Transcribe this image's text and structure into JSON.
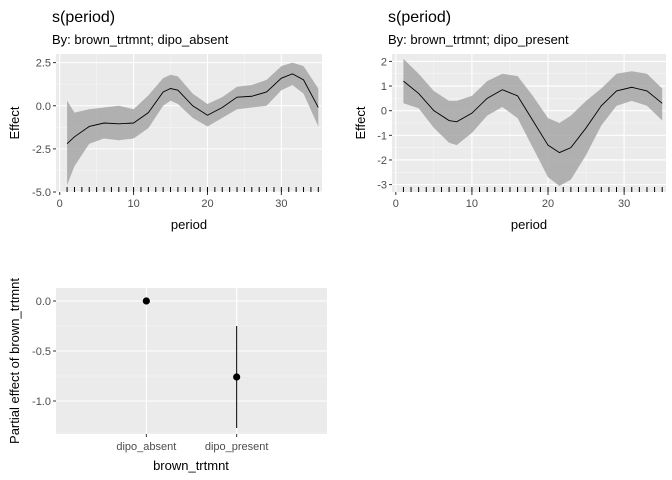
{
  "chart_data": [
    {
      "type": "area",
      "title": "s(period)",
      "subtitle": "By: brown_trtmnt; dipo_absent",
      "xlabel": "period",
      "ylabel": "Effect",
      "xlim": [
        -0.5,
        35.5
      ],
      "ylim": [
        -5.0,
        3.0
      ],
      "xticks": [
        0,
        10,
        20,
        30
      ],
      "yticks": [
        2.5,
        0.0,
        -2.5,
        -5.0
      ],
      "ytick_labels": [
        "2.5",
        "0.0",
        "-2.5",
        "-5.0"
      ],
      "grid": true,
      "rug": [
        1,
        2,
        3,
        4,
        5,
        6,
        7,
        8,
        9,
        10,
        11,
        12,
        13,
        14,
        15,
        16,
        17,
        18,
        19,
        20,
        21,
        22,
        23,
        24,
        25,
        26,
        27,
        28,
        29,
        30,
        31,
        32,
        33,
        34,
        35
      ],
      "series": [
        {
          "x": [
            1,
            2,
            4,
            6,
            8,
            10,
            12,
            14,
            15,
            16,
            18,
            20,
            22,
            24,
            26,
            28,
            30,
            31.5,
            33,
            35
          ],
          "y": [
            -2.2,
            -1.8,
            -1.2,
            -1.0,
            -1.05,
            -1.0,
            -0.4,
            0.8,
            1.0,
            0.9,
            0.0,
            -0.55,
            -0.1,
            0.5,
            0.55,
            0.8,
            1.6,
            1.85,
            1.5,
            -0.1
          ],
          "lower": [
            -4.6,
            -3.5,
            -2.2,
            -1.9,
            -2.0,
            -1.9,
            -1.3,
            0.0,
            0.3,
            0.1,
            -0.7,
            -1.2,
            -0.7,
            -0.2,
            -0.1,
            0.0,
            0.9,
            1.2,
            0.7,
            -1.2
          ],
          "upper": [
            0.3,
            -0.4,
            -0.2,
            -0.1,
            0.0,
            -0.2,
            0.6,
            1.6,
            1.8,
            1.7,
            0.7,
            0.1,
            0.5,
            1.1,
            1.2,
            1.5,
            2.3,
            2.5,
            2.3,
            1.0
          ]
        }
      ]
    },
    {
      "type": "area",
      "title": "s(period)",
      "subtitle": "By: brown_trtmnt; dipo_present",
      "xlabel": "period",
      "ylabel": "Effect",
      "xlim": [
        -0.5,
        35.5
      ],
      "ylim": [
        -3.3,
        2.3
      ],
      "xticks": [
        0,
        10,
        20,
        30
      ],
      "yticks": [
        2,
        1,
        0,
        -1,
        -2,
        -3
      ],
      "ytick_labels": [
        "2",
        "1",
        "0",
        "-1",
        "-2",
        "-3"
      ],
      "grid": true,
      "rug": [
        1,
        2,
        3,
        4,
        5,
        6,
        7,
        8,
        9,
        10,
        11,
        12,
        13,
        14,
        15,
        16,
        17,
        18,
        19,
        20,
        21,
        22,
        23,
        24,
        25,
        26,
        27,
        28,
        29,
        30,
        31,
        32,
        33,
        34,
        35
      ],
      "series": [
        {
          "x": [
            1,
            3,
            5,
            7,
            8,
            10,
            12,
            14,
            16,
            18,
            20,
            21.5,
            23,
            25,
            27,
            29,
            31,
            33,
            35
          ],
          "y": [
            1.2,
            0.7,
            0.0,
            -0.4,
            -0.45,
            -0.1,
            0.5,
            0.85,
            0.6,
            -0.4,
            -1.4,
            -1.7,
            -1.5,
            -0.7,
            0.2,
            0.8,
            0.95,
            0.8,
            0.3
          ],
          "lower": [
            0.3,
            0.1,
            -0.7,
            -1.3,
            -1.4,
            -0.9,
            -0.2,
            0.15,
            -0.3,
            -1.5,
            -2.7,
            -3.05,
            -2.8,
            -1.8,
            -0.6,
            0.2,
            0.4,
            0.2,
            -0.4
          ],
          "upper": [
            2.1,
            1.5,
            0.8,
            0.4,
            0.4,
            0.6,
            1.2,
            1.5,
            1.4,
            0.6,
            -0.3,
            -0.5,
            -0.2,
            0.4,
            0.9,
            1.5,
            1.6,
            1.5,
            0.9
          ]
        }
      ]
    },
    {
      "type": "scatter",
      "xlabel": "brown_trtmnt",
      "ylabel": "Partial effect of brown_trtmnt",
      "categories": [
        "dipo_absent",
        "dipo_present"
      ],
      "ylim": [
        -1.33,
        0.13
      ],
      "yticks": [
        0.0,
        -0.5,
        -1.0
      ],
      "ytick_labels": [
        "0.0",
        "-0.5",
        "-1.0"
      ],
      "grid": true,
      "points": [
        {
          "category": "dipo_absent",
          "value": 0.0,
          "lower": 0.0,
          "upper": 0.0
        },
        {
          "category": "dipo_present",
          "value": -0.76,
          "lower": -1.27,
          "upper": -0.25
        }
      ]
    }
  ]
}
